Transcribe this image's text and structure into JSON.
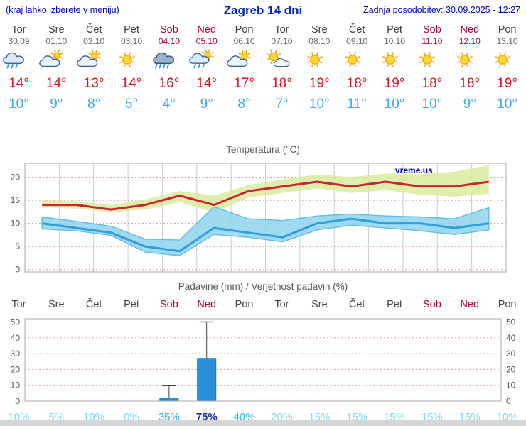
{
  "header": {
    "menu_hint": "(kraj lahko izberete v meniju)",
    "title": "Zagreb 14 dni",
    "last_update": "Zadnja posodobitev: 30.09.2025 - 12:27"
  },
  "days": [
    {
      "name": "Tor",
      "date": "30.09",
      "weekend": false,
      "icon": "rain",
      "tmax": "14°",
      "tmin": "10°"
    },
    {
      "name": "Sre",
      "date": "01.10",
      "weekend": false,
      "icon": "sun-cloud",
      "tmax": "14°",
      "tmin": "9°"
    },
    {
      "name": "Čet",
      "date": "02.10",
      "weekend": false,
      "icon": "sun-cloud",
      "tmax": "13°",
      "tmin": "8°"
    },
    {
      "name": "Pet",
      "date": "03.10",
      "weekend": false,
      "icon": "sun",
      "tmax": "14°",
      "tmin": "5°"
    },
    {
      "name": "Sob",
      "date": "04.10",
      "weekend": true,
      "icon": "heavy-rain",
      "tmax": "16°",
      "tmin": "4°"
    },
    {
      "name": "Ned",
      "date": "05.10",
      "weekend": true,
      "icon": "sun-rain",
      "tmax": "14°",
      "tmin": "9°"
    },
    {
      "name": "Pon",
      "date": "06.10",
      "weekend": false,
      "icon": "sun-cloud",
      "tmax": "17°",
      "tmin": "8°"
    },
    {
      "name": "Tor",
      "date": "07.10",
      "weekend": false,
      "icon": "cloud-sun",
      "tmax": "18°",
      "tmin": "7°"
    },
    {
      "name": "Sre",
      "date": "08.10",
      "weekend": false,
      "icon": "sun",
      "tmax": "19°",
      "tmin": "10°"
    },
    {
      "name": "Čet",
      "date": "09.10",
      "weekend": false,
      "icon": "sun",
      "tmax": "18°",
      "tmin": "11°"
    },
    {
      "name": "Pet",
      "date": "10.10",
      "weekend": false,
      "icon": "sun",
      "tmax": "19°",
      "tmin": "10°"
    },
    {
      "name": "Sob",
      "date": "11.10",
      "weekend": true,
      "icon": "sun",
      "tmax": "18°",
      "tmin": "10°"
    },
    {
      "name": "Ned",
      "date": "12.10",
      "weekend": true,
      "icon": "sun",
      "tmax": "18°",
      "tmin": "9°"
    },
    {
      "name": "Pon",
      "date": "13.10",
      "weekend": false,
      "icon": "sun",
      "tmax": "19°",
      "tmin": "10°"
    }
  ],
  "chart_data": [
    {
      "type": "line",
      "title": "Temperatura (°C)",
      "watermark": "vreme.us",
      "categories": [
        "Tor 30.09",
        "Sre 01.10",
        "Čet 02.10",
        "Pet 03.10",
        "Sob 04.10",
        "Ned 05.10",
        "Pon 06.10",
        "Tor 07.10",
        "Sre 08.10",
        "Čet 09.10",
        "Pet 10.10",
        "Sob 11.10",
        "Ned 12.10",
        "Pon 13.10"
      ],
      "ylim": [
        -0.5,
        23
      ],
      "yticks": [
        0,
        5,
        10,
        15,
        20
      ],
      "grid": true,
      "series": [
        {
          "name": "max_temp",
          "color": "#cc2233",
          "values": [
            14,
            14,
            13,
            14,
            16,
            14,
            17,
            18,
            19,
            18,
            19,
            18,
            18,
            19
          ]
        },
        {
          "name": "min_temp",
          "color": "#2f9fdb",
          "values": [
            10,
            9,
            8,
            5,
            4,
            9,
            8,
            7,
            10,
            11,
            10,
            10,
            9,
            10
          ]
        },
        {
          "name": "max_range_upper",
          "color": "#d9ec9c",
          "values": [
            15,
            14.8,
            14,
            15.2,
            17,
            16,
            18.3,
            19.5,
            20.6,
            20,
            20.8,
            20.6,
            21.2,
            22.6
          ]
        },
        {
          "name": "max_range_lower",
          "color": "#d9ec9c",
          "values": [
            13.4,
            13.2,
            12.4,
            13,
            14.6,
            12.4,
            15.6,
            16.6,
            17.6,
            16.6,
            17.2,
            16.2,
            15.8,
            16.4
          ]
        },
        {
          "name": "min_range_upper",
          "color": "#8fd4ef",
          "values": [
            11.4,
            10.4,
            9.4,
            6.6,
            6.4,
            13.6,
            11,
            10.6,
            11.6,
            12,
            11.6,
            11.4,
            11,
            13.4
          ]
        },
        {
          "name": "min_range_lower",
          "color": "#8fd4ef",
          "values": [
            8.8,
            8.4,
            7.4,
            3.8,
            3,
            7.6,
            7,
            6,
            8.6,
            9.6,
            9,
            8.4,
            7.6,
            8.6
          ]
        }
      ]
    },
    {
      "type": "bar",
      "title": "Padavine (mm) / Verjetnost padavin (%)",
      "categories": [
        "Tor",
        "Sre",
        "Čet",
        "Pet",
        "Sob",
        "Ned",
        "Pon",
        "Tor",
        "Sre",
        "Čet",
        "Pet",
        "Sob",
        "Ned",
        "Pon"
      ],
      "values": [
        0,
        0,
        0,
        0,
        2,
        27,
        0,
        0,
        0,
        0,
        0,
        0,
        0,
        0
      ],
      "whisker_max": [
        0,
        0,
        0,
        0,
        10,
        50,
        0,
        0,
        0,
        0,
        0,
        0,
        0,
        0
      ],
      "probabilities": [
        10,
        5,
        10,
        0,
        35,
        75,
        40,
        20,
        15,
        15,
        15,
        15,
        15,
        10
      ],
      "prob_suffix": "%",
      "ylim": [
        0,
        52
      ],
      "yticks": [
        0,
        10,
        20,
        30,
        40,
        50
      ],
      "grid": true,
      "bar_color": "#2b8fdc"
    }
  ],
  "colors": {
    "weekend": "#b0003a",
    "tmax": "#dd1021",
    "tmin": "#3aa7e9",
    "prob_high": "#1c2f9c",
    "prob_mid": "#2fb9d9",
    "prob_low": "#7adced"
  }
}
